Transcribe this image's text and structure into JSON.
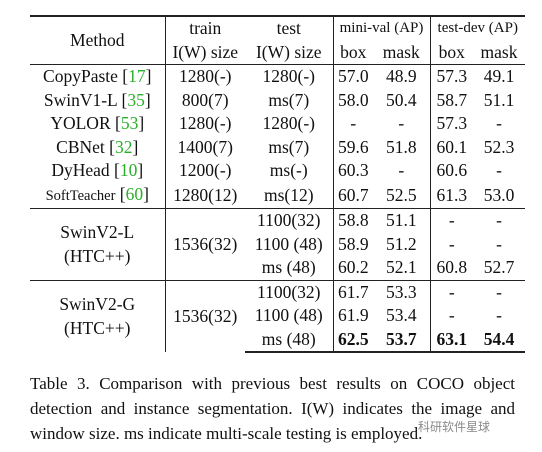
{
  "header": {
    "method": "Method",
    "train": "train",
    "test": "test",
    "i_w_size": "I(W) size",
    "mini_val": "mini-val (AP)",
    "test_dev": "test-dev (AP)",
    "box": "box",
    "mask": "mask"
  },
  "rows": [
    {
      "name": "CopyPaste",
      "cite": "17",
      "train": "1280(-)",
      "test": "1280(-)",
      "mv_box": "57.0",
      "mv_mask": "48.9",
      "td_box": "57.3",
      "td_mask": "49.1"
    },
    {
      "name": "SwinV1-L",
      "cite": "35",
      "train": "800(7)",
      "test": "ms(7)",
      "mv_box": "58.0",
      "mv_mask": "50.4",
      "td_box": "58.7",
      "td_mask": "51.1"
    },
    {
      "name": "YOLOR",
      "cite": "53",
      "train": "1280(-)",
      "test": "1280(-)",
      "mv_box": "-",
      "mv_mask": "-",
      "td_box": "57.3",
      "td_mask": "-"
    },
    {
      "name": "CBNet",
      "cite": "32",
      "train": "1400(7)",
      "test": "ms(7)",
      "mv_box": "59.6",
      "mv_mask": "51.8",
      "td_box": "60.1",
      "td_mask": "52.3"
    },
    {
      "name": "DyHead",
      "cite": "10",
      "train": "1200(-)",
      "test": "ms(-)",
      "mv_box": "60.3",
      "mv_mask": "-",
      "td_box": "60.6",
      "td_mask": "-"
    },
    {
      "name": "SoftTeacher",
      "cite": "60",
      "train": "1280(12)",
      "test": "ms(12)",
      "mv_box": "60.7",
      "mv_mask": "52.5",
      "td_box": "61.3",
      "td_mask": "53.0"
    }
  ],
  "groups": [
    {
      "name_line1": "SwinV2-L",
      "name_line2": "(HTC++)",
      "train": "1536(32)",
      "rows": [
        {
          "test": "1100(32)",
          "mv_box": "58.8",
          "mv_mask": "51.1",
          "td_box": "-",
          "td_mask": "-"
        },
        {
          "test": "1100 (48)",
          "mv_box": "58.9",
          "mv_mask": "51.2",
          "td_box": "-",
          "td_mask": "-"
        },
        {
          "test": "ms (48)",
          "mv_box": "60.2",
          "mv_mask": "52.1",
          "td_box": "60.8",
          "td_mask": "52.7"
        }
      ]
    },
    {
      "name_line1": "SwinV2-G",
      "name_line2": "(HTC++)",
      "train": "1536(32)",
      "rows": [
        {
          "test": "1100(32)",
          "mv_box": "61.7",
          "mv_mask": "53.3",
          "td_box": "-",
          "td_mask": "-"
        },
        {
          "test": "1100 (48)",
          "mv_box": "61.9",
          "mv_mask": "53.4",
          "td_box": "-",
          "td_mask": "-"
        },
        {
          "test": "ms (48)",
          "mv_box": "62.5",
          "mv_mask": "53.7",
          "td_box": "63.1",
          "td_mask": "54.4"
        }
      ]
    }
  ],
  "caption": "Table 3. Comparison with previous best results on COCO object detection and instance segmentation. I(W) indicates the image and window size. ms indicate multi-scale testing is employed.",
  "watermark": "科研软件星球"
}
